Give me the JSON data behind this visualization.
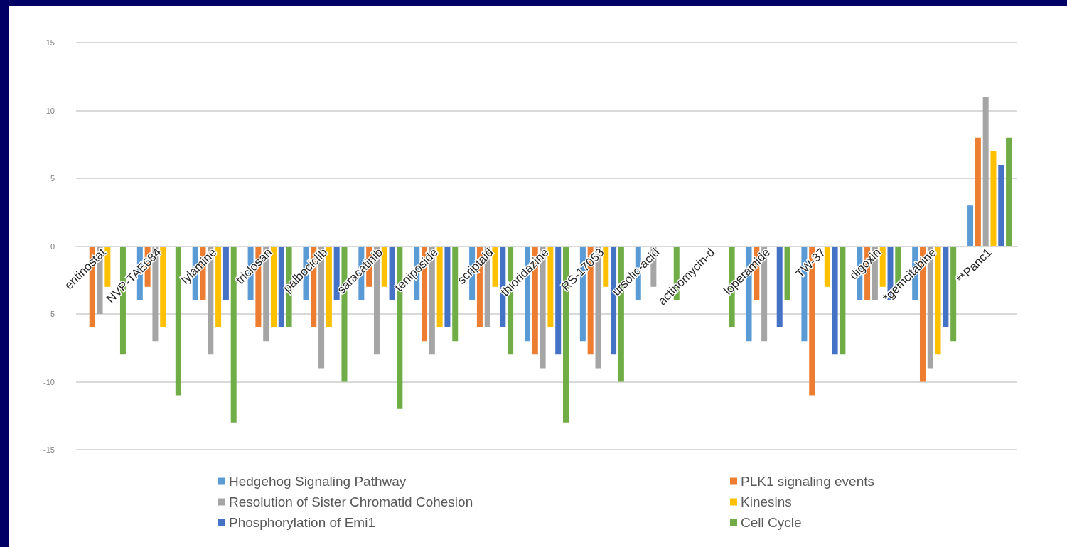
{
  "chart_data": {
    "type": "bar",
    "categories": [
      "entinostat",
      "NVP-TAE684",
      "lylamine",
      "triclosan",
      "palbociclib",
      "saracatinib",
      "teniposide",
      "scriptaid",
      "thioridazine",
      "RS-17053",
      "ursolic-acid",
      "actinomycin-d",
      "loperamide",
      "TW-37",
      "digoxin",
      "*gemcitabine",
      "**Panc1"
    ],
    "series": [
      {
        "name": "Hedgehog Signaling Pathway",
        "color": "#5b9bd5",
        "values": [
          0,
          -4,
          -4,
          -4,
          -4,
          -4,
          -4,
          -4,
          -7,
          -7,
          -4,
          0,
          -7,
          -7,
          -4,
          -4,
          3
        ]
      },
      {
        "name": "PLK1 signaling events",
        "color": "#ed7d31",
        "values": [
          -6,
          -3,
          -4,
          -6,
          -6,
          -3,
          -7,
          -6,
          -8,
          -8,
          0,
          0,
          -4,
          -11,
          -4,
          -10,
          8
        ]
      },
      {
        "name": "Resolution of Sister Chromatid Cohesion",
        "color": "#a5a5a5",
        "values": [
          -5,
          -7,
          -8,
          -7,
          -9,
          -8,
          -8,
          -6,
          -9,
          -9,
          -3,
          0,
          -7,
          0,
          -4,
          -9,
          11
        ]
      },
      {
        "name": "Kinesins",
        "color": "#ffc000",
        "values": [
          -3,
          -6,
          -6,
          -6,
          -6,
          -3,
          -6,
          -3,
          -6,
          -3,
          0,
          0,
          0,
          -3,
          -3,
          -8,
          7
        ]
      },
      {
        "name": "Phosphorylation of Emi1",
        "color": "#4472c4",
        "values": [
          0,
          0,
          -4,
          -6,
          -4,
          -4,
          -6,
          -6,
          -8,
          -8,
          0,
          0,
          -6,
          -8,
          -4,
          -6,
          6
        ]
      },
      {
        "name": "Cell Cycle",
        "color": "#70ad47",
        "values": [
          -8,
          -11,
          -13,
          -6,
          -10,
          -12,
          -7,
          -8,
          -13,
          -10,
          -4,
          -6,
          -4,
          -8,
          -3,
          -7,
          8
        ]
      }
    ],
    "ylim": [
      -15,
      15
    ],
    "yticks": [
      -15,
      -10,
      -5,
      0,
      5,
      10,
      15
    ],
    "grid": "y",
    "legend": "bottom"
  }
}
